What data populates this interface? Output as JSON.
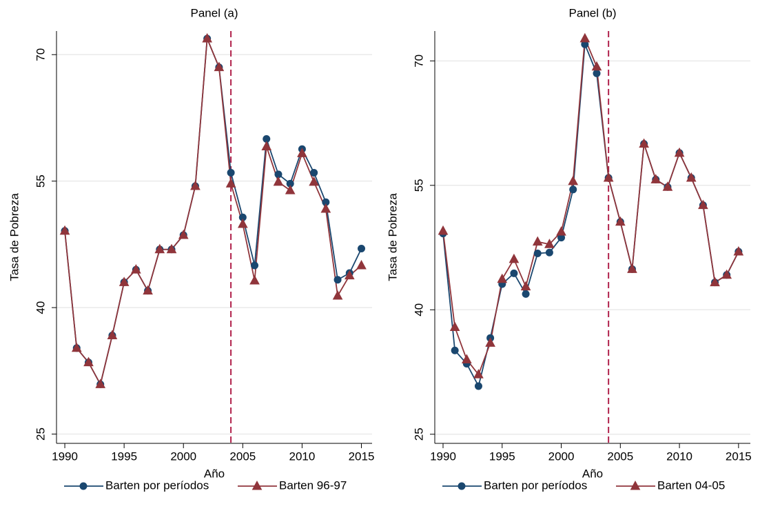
{
  "chart_data": [
    {
      "type": "line",
      "title": "Panel (a)",
      "x_label": "Año",
      "y_label": "Tasa de Pobreza",
      "x": [
        1990,
        1991,
        1992,
        1993,
        1994,
        1995,
        1996,
        1997,
        1998,
        1999,
        2000,
        2001,
        2002,
        2003,
        2004,
        2005,
        2006,
        2007,
        2008,
        2009,
        2010,
        2011,
        2012,
        2013,
        2014,
        2015
      ],
      "series": [
        {
          "name": "Barten por períodos",
          "color": "#1a476f",
          "marker": "circle",
          "values": [
            49.1,
            35.2,
            33.5,
            30.9,
            36.7,
            43.0,
            44.5,
            42.0,
            46.9,
            46.9,
            48.6,
            54.4,
            71.9,
            68.5,
            56.0,
            50.7,
            45.0,
            60.0,
            55.8,
            54.7,
            58.8,
            56.0,
            52.5,
            43.3,
            44.1,
            47.0
          ]
        },
        {
          "name": "Barten 96-97",
          "color": "#90353b",
          "marker": "triangle",
          "values": [
            49.1,
            35.2,
            33.5,
            30.9,
            36.7,
            43.0,
            44.5,
            42.0,
            46.9,
            46.9,
            48.6,
            54.4,
            71.9,
            68.5,
            54.7,
            49.9,
            43.2,
            59.1,
            54.9,
            53.9,
            58.3,
            54.9,
            51.7,
            41.4,
            43.8,
            45.0
          ]
        }
      ],
      "xlim": [
        1989.3,
        2015.9
      ],
      "ylim": [
        23.9,
        72.8
      ],
      "xticks": [
        1990,
        1995,
        2000,
        2005,
        2010,
        2015
      ],
      "yticks": [
        25,
        40,
        55,
        70
      ],
      "vline": 2004,
      "vline_color": "#b0204a",
      "grid": true
    },
    {
      "type": "line",
      "title": "Panel (b)",
      "x_label": "Año",
      "y_label": "Tasa de Pobreza",
      "x": [
        1990,
        1991,
        1992,
        1993,
        1994,
        1995,
        1996,
        1997,
        1998,
        1999,
        2000,
        2001,
        2002,
        2003,
        2004,
        2005,
        2006,
        2007,
        2008,
        2009,
        2010,
        2011,
        2012,
        2013,
        2014,
        2015
      ],
      "series": [
        {
          "name": "Barten por períodos",
          "color": "#1a476f",
          "marker": "circle",
          "values": [
            49.2,
            35.1,
            33.5,
            30.8,
            36.6,
            43.1,
            44.4,
            41.9,
            46.8,
            46.9,
            48.7,
            54.5,
            72.0,
            68.5,
            55.9,
            50.6,
            44.9,
            60.0,
            55.7,
            54.8,
            58.9,
            55.9,
            52.6,
            43.3,
            44.2,
            47.0
          ]
        },
        {
          "name": "Barten 04-05",
          "color": "#90353b",
          "marker": "triangle",
          "values": [
            49.5,
            37.9,
            34.0,
            32.2,
            36.0,
            43.7,
            46.1,
            42.8,
            48.2,
            47.9,
            49.4,
            55.5,
            72.7,
            69.3,
            55.9,
            50.6,
            44.9,
            60.0,
            55.7,
            54.8,
            58.9,
            55.9,
            52.6,
            43.3,
            44.2,
            47.0
          ]
        }
      ],
      "xlim": [
        1989.3,
        2016.0
      ],
      "ylim": [
        23.9,
        73.6
      ],
      "xticks": [
        1990,
        1995,
        2000,
        2005,
        2010,
        2015
      ],
      "yticks": [
        25,
        40,
        55,
        70
      ],
      "vline": 2004,
      "vline_color": "#b0204a",
      "grid": true
    }
  ]
}
